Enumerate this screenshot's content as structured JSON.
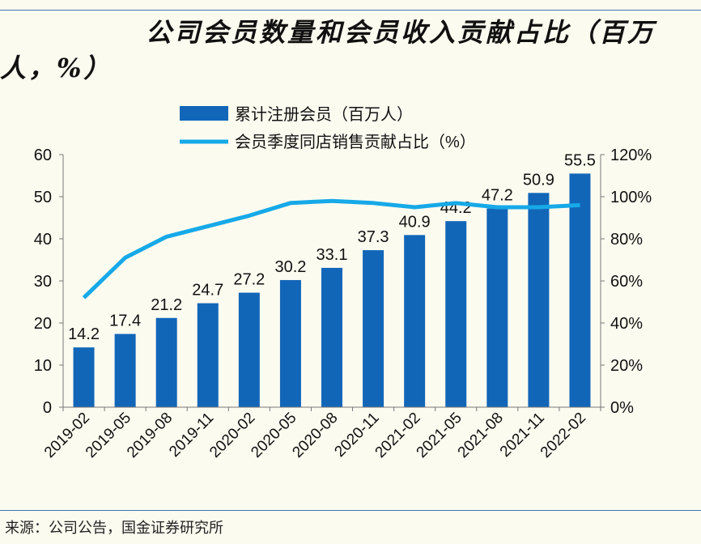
{
  "title": "公司会员数量和会员收入贡献占比（百万人，%）",
  "source": "来源：公司公告，国金证券研究所",
  "colors": {
    "bar": "#1266b8",
    "line": "#16a9e8",
    "accent_rule": "#3f74b3",
    "background": "#fcfbf0"
  },
  "chart_data": {
    "type": "bar",
    "categories": [
      "2019-02",
      "2019-05",
      "2019-08",
      "2019-11",
      "2020-02",
      "2020-05",
      "2020-08",
      "2020-11",
      "2021-02",
      "2021-05",
      "2021-08",
      "2021-11",
      "2022-02"
    ],
    "series": [
      {
        "name": "累计注册会员（百万人）",
        "type": "bar",
        "axis": "left",
        "values": [
          14.2,
          17.4,
          21.2,
          24.7,
          27.2,
          30.2,
          33.1,
          37.3,
          40.9,
          44.2,
          47.2,
          50.9,
          55.5
        ]
      },
      {
        "name": "会员季度同店销售贡献占比（%）",
        "type": "line",
        "axis": "right",
        "values": [
          52,
          71,
          81,
          86,
          91,
          97,
          98,
          97,
          95,
          97,
          95,
          95,
          96
        ]
      }
    ],
    "y_left": {
      "min": 0,
      "max": 60,
      "ticks": [
        "0",
        "10",
        "20",
        "30",
        "40",
        "50",
        "60"
      ]
    },
    "y_right": {
      "min": 0,
      "max": 120,
      "ticks": [
        "0%",
        "20%",
        "40%",
        "60%",
        "80%",
        "100%",
        "120%"
      ]
    },
    "legend_position": "top",
    "grid": false
  }
}
